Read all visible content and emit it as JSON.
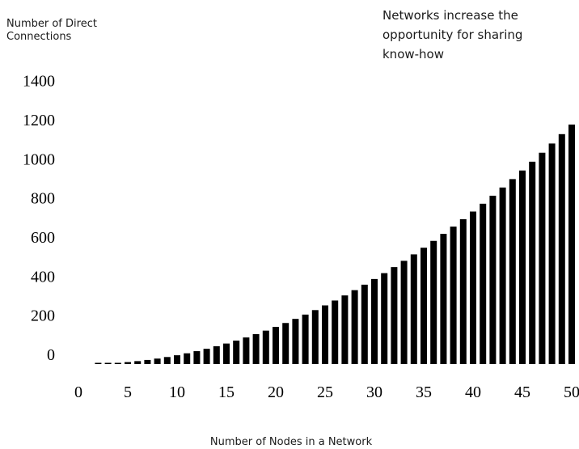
{
  "chart_data": {
    "type": "bar",
    "title_lines": [
      "Networks increase the",
      "opportunity for sharing",
      "know-how"
    ],
    "ylabel_lines": [
      "Number of Direct",
      "Connections"
    ],
    "xlabel": "Number of Nodes in a Network",
    "x_ticks": [
      0,
      5,
      10,
      15,
      20,
      25,
      30,
      35,
      40,
      45,
      50
    ],
    "y_ticks": [
      0,
      200,
      400,
      600,
      800,
      1000,
      1200,
      1400
    ],
    "ylim": [
      0,
      1400
    ],
    "xlim": [
      0,
      50
    ],
    "grid": false,
    "bar_color": "#000000",
    "x": [
      2,
      3,
      4,
      5,
      6,
      7,
      8,
      9,
      10,
      11,
      12,
      13,
      14,
      15,
      16,
      17,
      18,
      19,
      20,
      21,
      22,
      23,
      24,
      25,
      26,
      27,
      28,
      29,
      30,
      31,
      32,
      33,
      34,
      35,
      36,
      37,
      38,
      39,
      40,
      41,
      42,
      43,
      44,
      45,
      46,
      47,
      48,
      49,
      50
    ],
    "values": [
      1,
      3,
      6,
      10,
      15,
      21,
      28,
      36,
      45,
      55,
      66,
      78,
      91,
      105,
      120,
      136,
      153,
      171,
      190,
      210,
      231,
      253,
      276,
      300,
      325,
      351,
      378,
      406,
      435,
      465,
      496,
      528,
      561,
      595,
      630,
      666,
      703,
      741,
      780,
      820,
      861,
      903,
      946,
      990,
      1035,
      1081,
      1128,
      1176,
      1225
    ]
  }
}
